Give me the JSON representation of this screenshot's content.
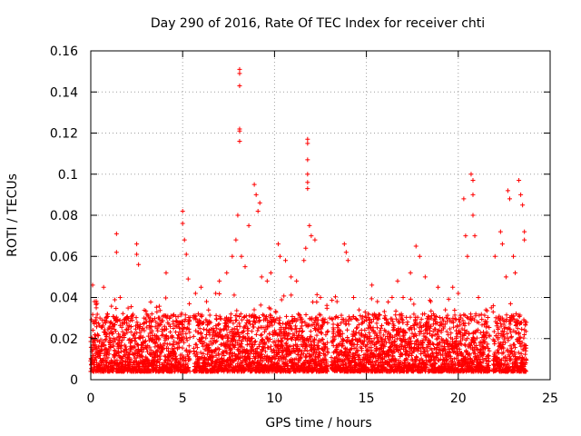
{
  "chart_data": {
    "type": "scatter",
    "title": "Day 290 of 2016, Rate Of TEC Index for receiver chti",
    "xlabel": "GPS time / hours",
    "ylabel": "ROTI / TECUs",
    "xlim": [
      0,
      25
    ],
    "ylim": [
      0,
      0.16
    ],
    "xticks": [
      0,
      5,
      10,
      15,
      20,
      25
    ],
    "xtick_labels": [
      "0",
      "5",
      "10",
      "15",
      "20",
      "25"
    ],
    "yticks": [
      0,
      0.02,
      0.04,
      0.06,
      0.08,
      0.1,
      0.12,
      0.14,
      0.16
    ],
    "ytick_labels": [
      "0",
      "0.02",
      "0.04",
      "0.06",
      "0.08",
      "0.1",
      "0.12",
      "0.14",
      "0.16"
    ],
    "grid": true,
    "marker": "+",
    "marker_color": "#ff0000",
    "series": [
      {
        "name": "ROTI",
        "points": [
          [
            0.1,
            0.046
          ],
          [
            0.2,
            0.038
          ],
          [
            0.3,
            0.035
          ],
          [
            0.5,
            0.03
          ],
          [
            0.7,
            0.045
          ],
          [
            0.9,
            0.032
          ],
          [
            1.1,
            0.028
          ],
          [
            1.4,
            0.071
          ],
          [
            1.4,
            0.062
          ],
          [
            1.6,
            0.04
          ],
          [
            2.0,
            0.03
          ],
          [
            2.5,
            0.066
          ],
          [
            2.5,
            0.061
          ],
          [
            2.6,
            0.056
          ],
          [
            2.9,
            0.03
          ],
          [
            3.2,
            0.028
          ],
          [
            3.6,
            0.033
          ],
          [
            4.1,
            0.052
          ],
          [
            4.5,
            0.025
          ],
          [
            5.0,
            0.082
          ],
          [
            5.0,
            0.076
          ],
          [
            5.1,
            0.068
          ],
          [
            5.2,
            0.061
          ],
          [
            5.3,
            0.049
          ],
          [
            5.7,
            0.042
          ],
          [
            6.0,
            0.045
          ],
          [
            6.3,
            0.038
          ],
          [
            6.8,
            0.042
          ],
          [
            7.0,
            0.048
          ],
          [
            7.4,
            0.052
          ],
          [
            7.7,
            0.06
          ],
          [
            7.9,
            0.068
          ],
          [
            8.0,
            0.08
          ],
          [
            8.1,
            0.151
          ],
          [
            8.1,
            0.149
          ],
          [
            8.1,
            0.143
          ],
          [
            8.1,
            0.122
          ],
          [
            8.1,
            0.121
          ],
          [
            8.1,
            0.116
          ],
          [
            8.2,
            0.06
          ],
          [
            8.4,
            0.055
          ],
          [
            8.6,
            0.075
          ],
          [
            8.9,
            0.095
          ],
          [
            9.0,
            0.09
          ],
          [
            9.1,
            0.082
          ],
          [
            9.2,
            0.086
          ],
          [
            9.3,
            0.05
          ],
          [
            9.6,
            0.048
          ],
          [
            9.8,
            0.052
          ],
          [
            10.2,
            0.066
          ],
          [
            10.3,
            0.06
          ],
          [
            10.6,
            0.058
          ],
          [
            10.9,
            0.05
          ],
          [
            11.2,
            0.048
          ],
          [
            11.6,
            0.058
          ],
          [
            11.7,
            0.064
          ],
          [
            11.8,
            0.117
          ],
          [
            11.8,
            0.115
          ],
          [
            11.8,
            0.107
          ],
          [
            11.8,
            0.1
          ],
          [
            11.8,
            0.096
          ],
          [
            11.8,
            0.093
          ],
          [
            11.9,
            0.075
          ],
          [
            12.0,
            0.07
          ],
          [
            12.2,
            0.068
          ],
          [
            12.5,
            0.04
          ],
          [
            13.0,
            0.03
          ],
          [
            13.4,
            0.038
          ],
          [
            13.8,
            0.066
          ],
          [
            13.9,
            0.062
          ],
          [
            14.0,
            0.058
          ],
          [
            14.3,
            0.04
          ],
          [
            14.6,
            0.034
          ],
          [
            15.1,
            0.032
          ],
          [
            15.3,
            0.046
          ],
          [
            15.6,
            0.038
          ],
          [
            16.0,
            0.03
          ],
          [
            16.4,
            0.04
          ],
          [
            16.7,
            0.048
          ],
          [
            17.0,
            0.04
          ],
          [
            17.4,
            0.052
          ],
          [
            17.7,
            0.065
          ],
          [
            17.9,
            0.06
          ],
          [
            18.2,
            0.05
          ],
          [
            18.5,
            0.038
          ],
          [
            18.9,
            0.045
          ],
          [
            19.3,
            0.034
          ],
          [
            19.7,
            0.045
          ],
          [
            20.0,
            0.042
          ],
          [
            20.3,
            0.088
          ],
          [
            20.4,
            0.07
          ],
          [
            20.5,
            0.06
          ],
          [
            20.7,
            0.1
          ],
          [
            20.8,
            0.097
          ],
          [
            20.8,
            0.09
          ],
          [
            20.8,
            0.08
          ],
          [
            20.9,
            0.07
          ],
          [
            21.1,
            0.04
          ],
          [
            21.5,
            0.034
          ],
          [
            21.8,
            0.035
          ],
          [
            22.0,
            0.06
          ],
          [
            22.3,
            0.072
          ],
          [
            22.4,
            0.066
          ],
          [
            22.6,
            0.05
          ],
          [
            22.7,
            0.092
          ],
          [
            22.8,
            0.088
          ],
          [
            23.0,
            0.06
          ],
          [
            23.1,
            0.052
          ],
          [
            23.3,
            0.097
          ],
          [
            23.4,
            0.09
          ],
          [
            23.5,
            0.085
          ],
          [
            23.6,
            0.072
          ],
          [
            23.6,
            0.068
          ]
        ],
        "band_note": "dense scatter of ROTI values roughly 0.003–0.03 throughout the day, with gaps near 5.5, 13.0 and 21.8 hours"
      }
    ]
  }
}
